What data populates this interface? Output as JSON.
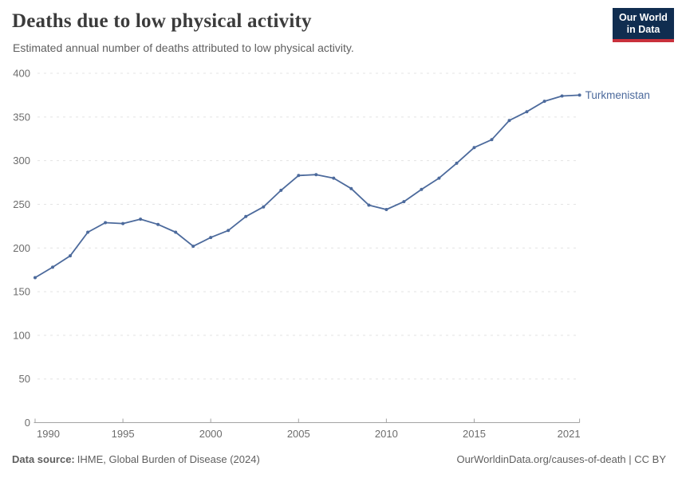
{
  "header": {
    "title": "Deaths due to low physical activity",
    "subtitle": "Estimated annual number of deaths attributed to low physical activity.",
    "logo": {
      "line1": "Our World",
      "line2": "in Data"
    }
  },
  "chart_data": {
    "type": "line",
    "title": "Deaths due to low physical activity",
    "subtitle": "Estimated annual number of deaths attributed to low physical activity.",
    "x": [
      1990,
      1991,
      1992,
      1993,
      1994,
      1995,
      1996,
      1997,
      1998,
      1999,
      2000,
      2001,
      2002,
      2003,
      2004,
      2005,
      2006,
      2007,
      2008,
      2009,
      2010,
      2011,
      2012,
      2013,
      2014,
      2015,
      2016,
      2017,
      2018,
      2019,
      2020,
      2021
    ],
    "series": [
      {
        "name": "Turkmenistan",
        "values": [
          166,
          178,
          191,
          218,
          229,
          228,
          233,
          227,
          218,
          202,
          212,
          220,
          236,
          247,
          266,
          283,
          284,
          280,
          268,
          249,
          244,
          253,
          267,
          280,
          297,
          315,
          324,
          346,
          356,
          368,
          374,
          375
        ]
      }
    ],
    "xlabel": "",
    "ylabel": "",
    "ylim": [
      0,
      400
    ],
    "yticks": [
      0,
      50,
      100,
      150,
      200,
      250,
      300,
      350,
      400
    ],
    "xticks": [
      1990,
      1995,
      2000,
      2005,
      2010,
      2015,
      2021
    ],
    "grid": "horizontal-dashed",
    "legend_position": "end-of-line",
    "line_color": "#4c6a9c"
  },
  "footer": {
    "source_label": "Data source:",
    "source_value": "IHME, Global Burden of Disease (2024)",
    "attribution": "OurWorldinData.org/causes-of-death | CC BY"
  },
  "colors": {
    "line": "#4c6a9c",
    "logo_background": "#102d50",
    "logo_bar": "#c9313c",
    "title_text": "#3b3b3b",
    "muted_text": "#5f5f5f",
    "tick_text": "#6c6c6c",
    "gridline": "#e4e4e4",
    "axis": "#a3a3a3"
  }
}
